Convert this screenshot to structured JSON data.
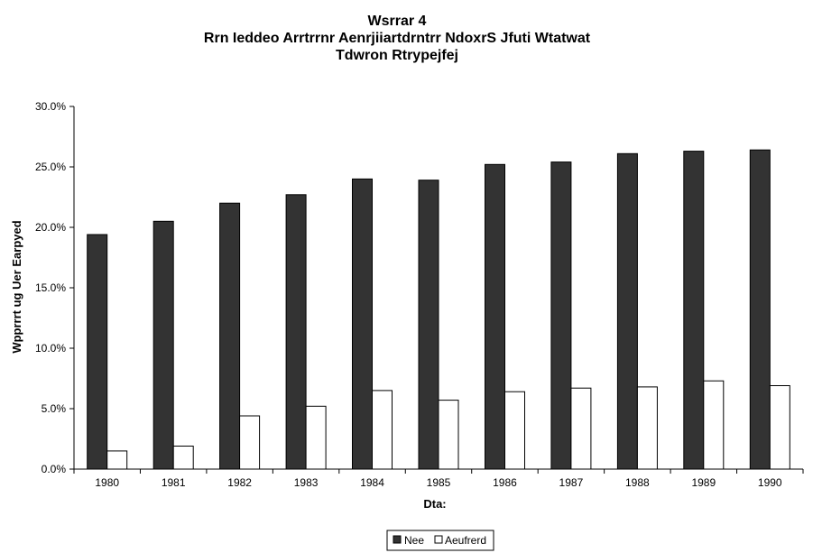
{
  "chart_data": {
    "type": "bar",
    "title_lines": [
      "Wsrrar 4",
      "Rrn Ieddeo Arrtrrnr Aenrjiiartdrntrr NdoxrS Jfuti Wtatwat",
      "Tdwron Rtrypejfej"
    ],
    "xlabel": "Dta:",
    "ylabel": "Wpprrrt ug Uer Earpyed",
    "categories": [
      "1980",
      "1981",
      "1982",
      "1983",
      "1984",
      "1985",
      "1986",
      "1987",
      "1988",
      "1989",
      "1990"
    ],
    "series": [
      {
        "name": "Nee",
        "color": "#333333",
        "values": [
          19.4,
          20.5,
          22.0,
          22.7,
          24.0,
          23.9,
          25.2,
          25.4,
          26.1,
          26.3,
          26.4
        ]
      },
      {
        "name": "Aeufrerd",
        "color": "#ffffff",
        "values": [
          1.5,
          1.9,
          4.4,
          5.2,
          6.5,
          5.7,
          6.4,
          6.7,
          6.8,
          7.3,
          6.9
        ]
      }
    ],
    "ylim": [
      0,
      30
    ],
    "yticks": [
      0,
      5,
      10,
      15,
      20,
      25,
      30
    ],
    "ytick_labels": [
      "0.0%",
      "5.0%",
      "10.0%",
      "15.0%",
      "20.0%",
      "25.0%",
      "30.0%"
    ],
    "grid": false,
    "legend_position": "bottom-center"
  }
}
